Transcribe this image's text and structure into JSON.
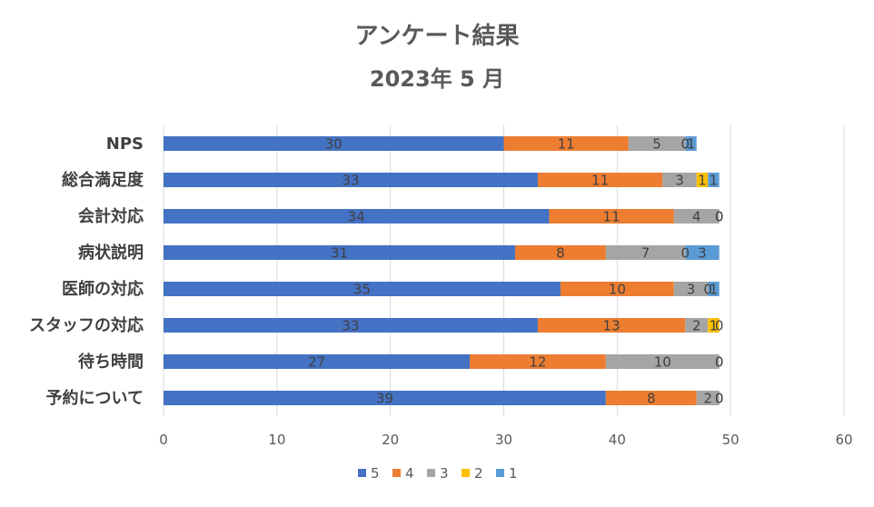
{
  "chart_data": {
    "type": "bar",
    "orientation": "horizontal",
    "stacked": true,
    "title": "アンケート結果",
    "subtitle": "2023年 5 月",
    "categories": [
      "NPS",
      "総合満足度",
      "会計対応",
      "病状説明",
      "医師の対応",
      "スタッフの対応",
      "待ち時間",
      "予約について"
    ],
    "series": [
      {
        "name": "5",
        "color": "#4472C4",
        "values": [
          30,
          33,
          34,
          31,
          35,
          33,
          27,
          39
        ]
      },
      {
        "name": "4",
        "color": "#ED7D31",
        "values": [
          11,
          11,
          11,
          8,
          10,
          13,
          12,
          8
        ]
      },
      {
        "name": "3",
        "color": "#A5A5A5",
        "values": [
          5,
          3,
          4,
          7,
          3,
          2,
          10,
          2
        ]
      },
      {
        "name": "2",
        "color": "#FFC000",
        "values": [
          0,
          1,
          0,
          0,
          0,
          1,
          0,
          0
        ]
      },
      {
        "name": "1",
        "color": "#5B9BD5",
        "values": [
          1,
          1,
          0,
          3,
          1,
          0,
          0,
          0
        ]
      }
    ],
    "xlim": [
      0,
      60
    ],
    "xticks": [
      0,
      10,
      20,
      30,
      40,
      50,
      60
    ],
    "grid": true,
    "legend_position": "bottom"
  }
}
